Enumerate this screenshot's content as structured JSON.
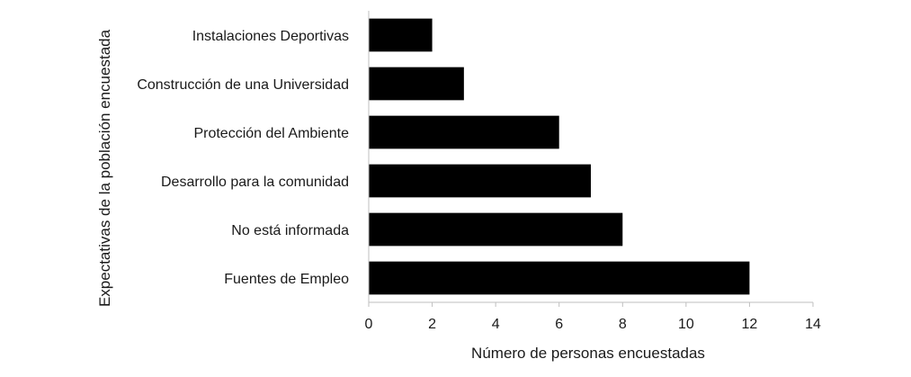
{
  "chart_data": {
    "type": "bar",
    "orientation": "horizontal",
    "categories": [
      "Instalaciones Deportivas",
      "Construcción de una Universidad",
      "Protección del Ambiente",
      "Desarrollo para la comunidad",
      "No está informada",
      "Fuentes de Empleo"
    ],
    "values": [
      2,
      3,
      6,
      7,
      8,
      12
    ],
    "xlabel": "Número de personas encuestadas",
    "ylabel": "Expectativas de la población encuestada",
    "xlim": [
      0,
      14
    ],
    "xticks": [
      "0",
      "2",
      "4",
      "6",
      "8",
      "10",
      "12",
      "14"
    ],
    "grid": false,
    "legend": "none",
    "bar_color": "#000000"
  }
}
